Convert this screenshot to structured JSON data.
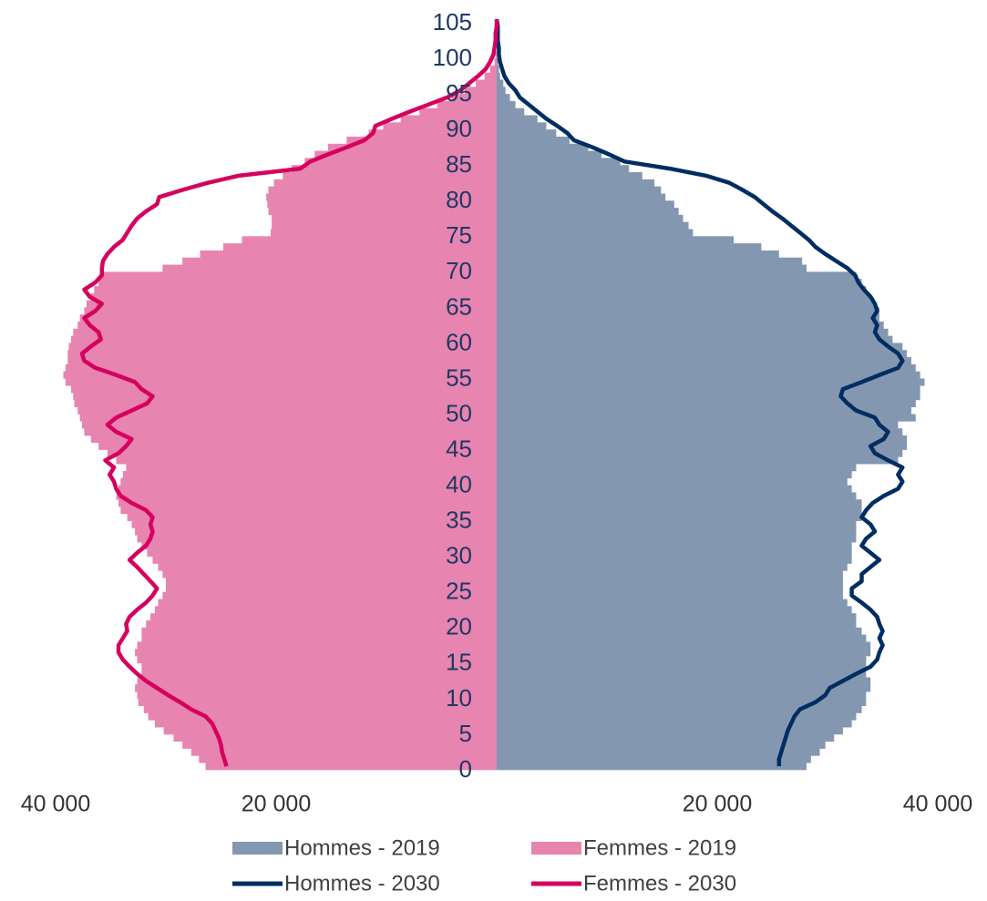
{
  "chart_data": {
    "type": "bar",
    "categories": [
      0,
      1,
      2,
      3,
      4,
      5,
      6,
      7,
      8,
      9,
      10,
      11,
      12,
      13,
      14,
      15,
      16,
      17,
      18,
      19,
      20,
      21,
      22,
      23,
      24,
      25,
      26,
      27,
      28,
      29,
      30,
      31,
      32,
      33,
      34,
      35,
      36,
      37,
      38,
      39,
      40,
      41,
      42,
      43,
      44,
      45,
      46,
      47,
      48,
      49,
      50,
      51,
      52,
      53,
      54,
      55,
      56,
      57,
      58,
      59,
      60,
      61,
      62,
      63,
      64,
      65,
      66,
      67,
      68,
      69,
      70,
      71,
      72,
      73,
      74,
      75,
      76,
      77,
      78,
      79,
      80,
      81,
      82,
      83,
      84,
      85,
      86,
      87,
      88,
      89,
      90,
      91,
      92,
      93,
      94,
      95,
      96,
      97,
      98,
      99,
      100,
      101,
      102,
      103,
      104,
      105
    ],
    "ylim": [
      0,
      105
    ],
    "yticks": [
      0,
      5,
      10,
      15,
      20,
      25,
      30,
      35,
      40,
      45,
      50,
      55,
      60,
      65,
      70,
      75,
      80,
      85,
      90,
      95,
      100,
      105
    ],
    "xlim": [
      -40000,
      40000
    ],
    "xticks": [
      {
        "value": -40000,
        "label": "40 000"
      },
      {
        "value": -20000,
        "label": "20 000"
      },
      {
        "value": 20000,
        "label": "20 000"
      },
      {
        "value": 40000,
        "label": "40 000"
      }
    ],
    "series": [
      {
        "name": "Hommes - 2019",
        "type": "bar",
        "color": "#8497b0",
        "values": [
          28100,
          28500,
          29300,
          29800,
          30600,
          31400,
          32200,
          32600,
          33100,
          33500,
          33500,
          33900,
          33900,
          33500,
          33500,
          33500,
          33900,
          33900,
          33500,
          33100,
          32600,
          32600,
          32200,
          31800,
          31400,
          31400,
          31400,
          31400,
          31800,
          32200,
          32200,
          32200,
          32600,
          32600,
          32600,
          33100,
          33100,
          33100,
          32600,
          32200,
          31800,
          32200,
          32600,
          36400,
          36800,
          37200,
          37200,
          36800,
          36400,
          38000,
          37600,
          38000,
          38400,
          38400,
          38800,
          38400,
          38000,
          37600,
          37200,
          36800,
          35900,
          35500,
          35100,
          34700,
          34700,
          34300,
          33900,
          33500,
          33100,
          32600,
          28100,
          27700,
          25600,
          24000,
          21500,
          17800,
          17400,
          16900,
          16500,
          16100,
          15300,
          14900,
          14300,
          13200,
          12000,
          11200,
          9500,
          8300,
          6600,
          5400,
          4500,
          3700,
          2500,
          1700,
          1200,
          800,
          600,
          300,
          200,
          100,
          0,
          0,
          0,
          0,
          0,
          0
        ]
      },
      {
        "name": "Femmes - 2019",
        "type": "bar",
        "color": "#e884b0",
        "values": [
          26400,
          27000,
          27700,
          28500,
          29300,
          30200,
          31000,
          31600,
          32000,
          32500,
          32600,
          32800,
          32600,
          32200,
          32200,
          32600,
          32800,
          32600,
          32200,
          32200,
          31800,
          31400,
          31000,
          30700,
          30300,
          30000,
          30000,
          30300,
          30700,
          31200,
          31700,
          32200,
          32600,
          32800,
          33100,
          33500,
          34100,
          34300,
          34500,
          34300,
          34100,
          33900,
          33600,
          34500,
          35300,
          36100,
          36800,
          37400,
          37600,
          37800,
          38000,
          38300,
          38400,
          38600,
          39100,
          39300,
          39100,
          38900,
          38900,
          38800,
          38600,
          38400,
          38000,
          37800,
          37400,
          37200,
          36800,
          36500,
          36100,
          35800,
          30300,
          28500,
          26900,
          24800,
          23100,
          20500,
          20400,
          20400,
          20700,
          20800,
          20900,
          20700,
          20200,
          19400,
          18600,
          17400,
          16500,
          15300,
          13600,
          11600,
          10300,
          8700,
          7000,
          5400,
          4100,
          2900,
          1900,
          1100,
          600,
          200,
          100,
          0,
          0,
          0,
          0,
          0
        ]
      },
      {
        "name": "Hommes - 2030",
        "type": "line",
        "color": "#002d62",
        "values": [
          25600,
          25600,
          25800,
          26000,
          26200,
          26400,
          26700,
          27000,
          27500,
          28900,
          29800,
          30200,
          31400,
          32600,
          33900,
          34500,
          34700,
          35000,
          34700,
          35000,
          34700,
          34500,
          33900,
          33100,
          32200,
          32200,
          33100,
          33100,
          33900,
          34700,
          33900,
          33100,
          33500,
          34300,
          33900,
          33100,
          33500,
          34100,
          35100,
          36400,
          36800,
          36400,
          36800,
          35500,
          34300,
          33900,
          35100,
          35500,
          34700,
          34300,
          32600,
          31800,
          31200,
          31400,
          33100,
          34700,
          36400,
          36800,
          36400,
          35500,
          34700,
          34300,
          34500,
          34100,
          34500,
          34300,
          33900,
          33300,
          32800,
          32500,
          31800,
          30800,
          29800,
          28900,
          28300,
          27500,
          26700,
          25900,
          25000,
          24200,
          23400,
          22300,
          21100,
          19000,
          15700,
          11600,
          10200,
          8700,
          7000,
          6400,
          5500,
          4500,
          3700,
          2900,
          2100,
          1700,
          1100,
          700,
          500,
          300,
          200,
          200,
          100,
          100,
          100,
          0
        ]
      },
      {
        "name": "Femmes - 2030",
        "type": "line",
        "color": "#d6005e",
        "values": [
          24500,
          24700,
          24900,
          25000,
          25200,
          25500,
          25800,
          26400,
          27700,
          28700,
          29800,
          30800,
          31800,
          32600,
          33300,
          33900,
          34300,
          34300,
          33900,
          33500,
          33600,
          33300,
          32600,
          31800,
          31200,
          30800,
          31400,
          32000,
          32600,
          33300,
          32600,
          31800,
          31400,
          31200,
          31400,
          31200,
          31800,
          33100,
          34100,
          34500,
          34700,
          35100,
          34700,
          35500,
          34300,
          33600,
          33100,
          34500,
          35300,
          34500,
          33100,
          31700,
          31200,
          32200,
          32800,
          34500,
          36400,
          37400,
          37600,
          36800,
          35900,
          36100,
          36900,
          37400,
          36400,
          35800,
          36900,
          37400,
          36400,
          35800,
          35800,
          35700,
          35300,
          34700,
          33900,
          33500,
          33100,
          32600,
          31800,
          30800,
          30600,
          28500,
          26200,
          23400,
          17800,
          16900,
          15300,
          13600,
          12000,
          11200,
          11000,
          9500,
          7900,
          6200,
          4500,
          3300,
          2500,
          1700,
          1000,
          600,
          300,
          200,
          100,
          100,
          0,
          0
        ]
      }
    ]
  }
}
